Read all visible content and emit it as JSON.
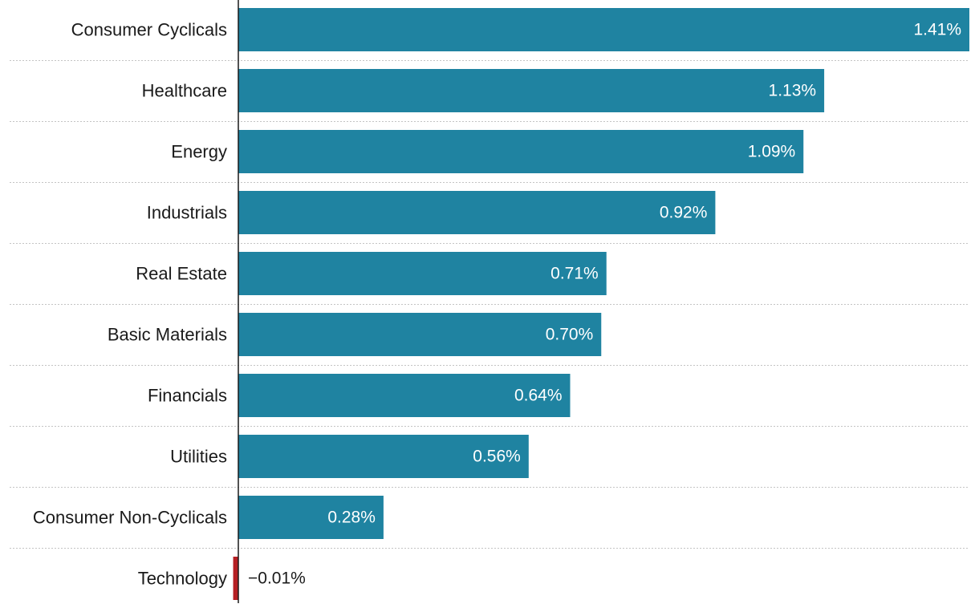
{
  "chart_data": {
    "type": "bar",
    "orientation": "horizontal",
    "title": "",
    "xlabel": "",
    "ylabel": "",
    "categories": [
      "Consumer Cyclicals",
      "Healthcare",
      "Energy",
      "Industrials",
      "Real Estate",
      "Basic Materials",
      "Financials",
      "Utilities",
      "Consumer Non-Cyclicals",
      "Technology"
    ],
    "values": [
      1.41,
      1.13,
      1.09,
      0.92,
      0.71,
      0.7,
      0.64,
      0.56,
      0.28,
      -0.01
    ],
    "value_labels": [
      "1.41%",
      "1.13%",
      "1.09%",
      "0.92%",
      "0.71%",
      "0.70%",
      "0.64%",
      "0.56%",
      "0.28%",
      "−0.01%"
    ],
    "xlim": [
      0,
      1.41
    ],
    "grid": "horizontal dotted separators",
    "legend": "none",
    "colors": {
      "positive": "#1f83a1",
      "negative": "#b51f24",
      "label_inside": "#ffffff",
      "label_outside": "#1a1a1a",
      "category_text": "#1a1a1a"
    }
  }
}
